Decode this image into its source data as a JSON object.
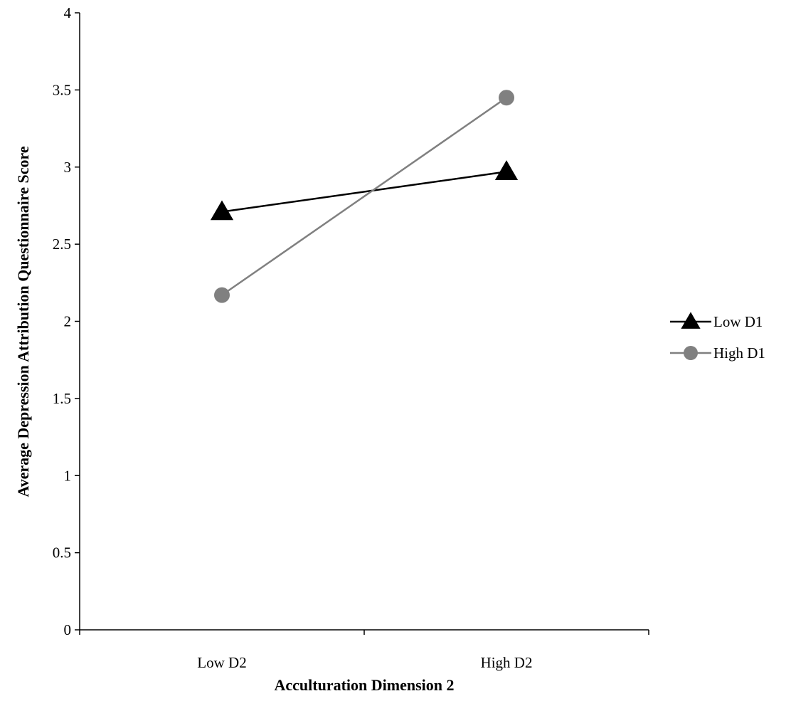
{
  "chart_data": {
    "type": "line",
    "title": "",
    "xlabel": "Acculturation Dimension 2",
    "ylabel": "Average Depression Attribution Questionnaire Score",
    "categories": [
      "Low D2",
      "High D2"
    ],
    "ylim": [
      0,
      4
    ],
    "yticks": [
      "0",
      "0.5",
      "1",
      "1.5",
      "2",
      "2.5",
      "3",
      "3.5",
      "4"
    ],
    "grid": false,
    "legend_position": "right",
    "series": [
      {
        "name": "Low D1",
        "values": [
          2.71,
          2.97
        ],
        "color": "#000000",
        "marker": "triangle"
      },
      {
        "name": "High D1",
        "values": [
          2.17,
          3.45
        ],
        "color": "#808080",
        "marker": "circle"
      }
    ]
  }
}
